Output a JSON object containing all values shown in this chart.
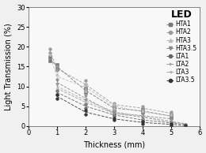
{
  "title": "LED",
  "xlabel": "Thickness (mm)",
  "ylabel": "Light Transmission (%)",
  "xlim": [
    0,
    6
  ],
  "ylim": [
    0,
    30
  ],
  "xticks": [
    0,
    1,
    2,
    3,
    4,
    5,
    6
  ],
  "yticks": [
    0,
    5,
    10,
    15,
    20,
    25,
    30
  ],
  "background_color": "#f0f0f0",
  "plot_bg_color": "#f8f8f8",
  "legend_title_fontsize": 9,
  "legend_fontsize": 5.5,
  "axis_fontsize": 7,
  "tick_fontsize": 6,
  "series": {
    "HTA1": {
      "x": [
        0.75,
        0.75,
        1.0,
        1.0,
        2.0,
        2.0,
        3.0,
        3.0,
        4.0,
        4.0,
        5.0,
        5.0
      ],
      "y": [
        17.5,
        16.5,
        15.5,
        14.5,
        9.5,
        8.5,
        5.0,
        4.0,
        4.2,
        3.5,
        2.8,
        2.2
      ],
      "lx": [
        0.75,
        1.0,
        2.0,
        3.0,
        4.0,
        5.0
      ],
      "ly": [
        17.0,
        15.0,
        9.0,
        4.5,
        3.8,
        2.5
      ],
      "marker": "s",
      "color": "#777777"
    },
    "HTA2": {
      "x": [
        0.75,
        0.75,
        1.0,
        1.0,
        2.0,
        2.0,
        2.0,
        3.0,
        3.0,
        4.0,
        4.0,
        5.0,
        5.0
      ],
      "y": [
        19.5,
        18.5,
        15.0,
        14.0,
        11.5,
        10.5,
        9.5,
        5.8,
        5.0,
        5.0,
        4.0,
        3.5,
        2.8
      ],
      "lx": [
        0.75,
        1.0,
        2.0,
        3.0,
        4.0,
        5.0
      ],
      "ly": [
        19.0,
        14.5,
        10.5,
        5.4,
        4.5,
        3.2
      ],
      "marker": "o",
      "color": "#999999"
    },
    "HTA3": {
      "x": [
        0.75,
        1.0,
        1.0,
        2.0,
        2.0,
        3.0,
        3.0,
        4.0,
        4.0,
        5.0,
        5.0
      ],
      "y": [
        18.0,
        13.0,
        12.0,
        10.5,
        9.0,
        5.5,
        4.5,
        4.0,
        3.2,
        3.0,
        2.0
      ],
      "lx": [
        0.75,
        1.0,
        2.0,
        3.0,
        4.0,
        5.0
      ],
      "ly": [
        18.0,
        12.5,
        9.8,
        5.0,
        3.6,
        2.5
      ],
      "marker": "^",
      "color": "#bbbbbb"
    },
    "HTA3.5": {
      "x": [
        1.0,
        1.0,
        2.0,
        2.0,
        3.0,
        3.0,
        4.0,
        4.0,
        5.0,
        5.0
      ],
      "y": [
        11.5,
        10.5,
        7.5,
        6.5,
        3.5,
        2.8,
        3.0,
        2.2,
        2.0,
        1.5
      ],
      "lx": [
        1.0,
        2.0,
        3.0,
        4.0,
        5.0
      ],
      "ly": [
        11.0,
        7.0,
        3.2,
        2.6,
        1.8
      ],
      "marker": "v",
      "color": "#888888"
    },
    "LTA1": {
      "x": [
        1.0,
        1.0,
        2.0,
        2.0,
        3.0,
        3.0,
        4.0,
        4.0,
        5.0,
        5.0,
        5.5
      ],
      "y": [
        9.0,
        8.0,
        5.5,
        4.5,
        3.0,
        2.5,
        1.8,
        1.2,
        1.0,
        0.5,
        0.4
      ],
      "lx": [
        1.0,
        2.0,
        3.0,
        4.0,
        5.0,
        5.5
      ],
      "ly": [
        8.5,
        5.0,
        2.8,
        1.5,
        0.8,
        0.4
      ],
      "marker": "o",
      "color": "#666666"
    },
    "LTA2": {
      "x": [
        1.0,
        1.0,
        2.0,
        2.0,
        3.0,
        3.0,
        4.0,
        4.0,
        5.0,
        5.0,
        5.5
      ],
      "y": [
        10.0,
        9.0,
        6.5,
        5.5,
        3.5,
        2.8,
        2.5,
        1.8,
        1.2,
        0.8,
        0.5
      ],
      "lx": [
        1.0,
        2.0,
        3.0,
        4.0,
        5.0,
        5.5
      ],
      "ly": [
        9.5,
        6.0,
        3.2,
        2.2,
        1.0,
        0.5
      ],
      "marker": "4",
      "color": "#999999"
    },
    "LTA3": {
      "x": [
        1.0,
        1.0,
        2.0,
        2.0,
        3.0,
        3.0,
        4.0,
        4.0,
        5.0,
        5.0,
        5.5
      ],
      "y": [
        10.5,
        9.5,
        7.0,
        6.0,
        4.0,
        3.2,
        2.8,
        2.0,
        1.5,
        1.0,
        0.6
      ],
      "lx": [
        1.0,
        2.0,
        3.0,
        4.0,
        5.0,
        5.5
      ],
      "ly": [
        10.0,
        6.5,
        3.6,
        2.4,
        1.2,
        0.6
      ],
      "marker": "3",
      "color": "#aaaaaa"
    },
    "LTA3.5": {
      "x": [
        1.0,
        1.0,
        2.0,
        2.0,
        3.0,
        3.0,
        4.0,
        4.0,
        5.0,
        5.0,
        5.5
      ],
      "y": [
        8.0,
        7.0,
        4.0,
        3.0,
        2.0,
        1.5,
        1.2,
        0.6,
        0.5,
        0.2,
        0.1
      ],
      "lx": [
        1.0,
        2.0,
        3.0,
        4.0,
        5.0,
        5.5
      ],
      "ly": [
        7.5,
        3.5,
        1.8,
        0.9,
        0.4,
        0.1
      ],
      "marker": "o",
      "color": "#333333"
    }
  }
}
